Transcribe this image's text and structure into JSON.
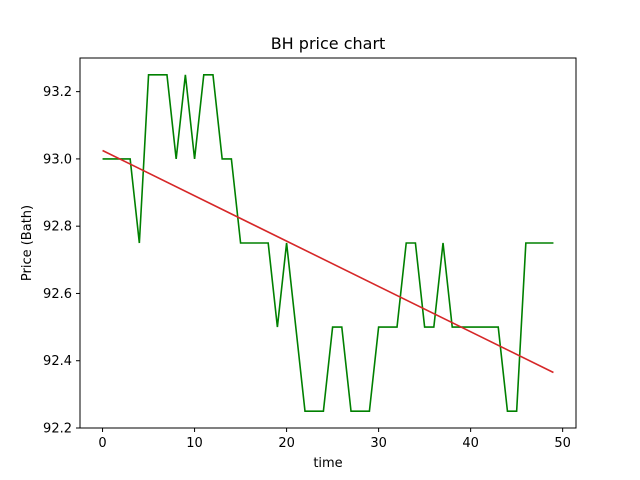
{
  "chart_data": {
    "type": "line",
    "title": "BH price chart",
    "xlabel": "time",
    "ylabel": "Price (Bath)",
    "xlim": [
      -2.45,
      51.45
    ],
    "ylim": [
      92.2,
      93.3
    ],
    "x_ticks": [
      0,
      10,
      20,
      30,
      40,
      50
    ],
    "x_tick_labels": [
      "0",
      "10",
      "20",
      "30",
      "40",
      "50"
    ],
    "y_ticks": [
      92.2,
      92.4,
      92.6,
      92.8,
      93.0,
      93.2
    ],
    "y_tick_labels": [
      "92.2",
      "92.4",
      "92.6",
      "92.8",
      "93.0",
      "93.2"
    ],
    "grid": false,
    "series": [
      {
        "color": "#008000",
        "x": [
          0,
          1,
          2,
          3,
          4,
          5,
          6,
          7,
          8,
          9,
          10,
          11,
          12,
          13,
          14,
          15,
          16,
          17,
          18,
          19,
          20,
          21,
          22,
          23,
          24,
          25,
          26,
          27,
          28,
          29,
          30,
          31,
          32,
          33,
          34,
          35,
          36,
          37,
          38,
          39,
          40,
          41,
          42,
          43,
          44,
          45,
          46,
          47,
          48,
          49
        ],
        "y": [
          93.0,
          93.0,
          93.0,
          93.0,
          92.75,
          93.25,
          93.25,
          93.25,
          93.0,
          93.25,
          93.0,
          93.25,
          93.25,
          93.0,
          93.0,
          92.75,
          92.75,
          92.75,
          92.75,
          92.5,
          92.75,
          92.5,
          92.25,
          92.25,
          92.25,
          92.5,
          92.5,
          92.25,
          92.25,
          92.25,
          92.5,
          92.5,
          92.5,
          92.75,
          92.75,
          92.5,
          92.5,
          92.75,
          92.5,
          92.5,
          92.5,
          92.5,
          92.5,
          92.5,
          92.25,
          92.25,
          92.75,
          92.75,
          92.75,
          92.75
        ]
      },
      {
        "color": "#d62728",
        "x": [
          0,
          49
        ],
        "y": [
          93.025,
          92.365
        ]
      }
    ]
  }
}
